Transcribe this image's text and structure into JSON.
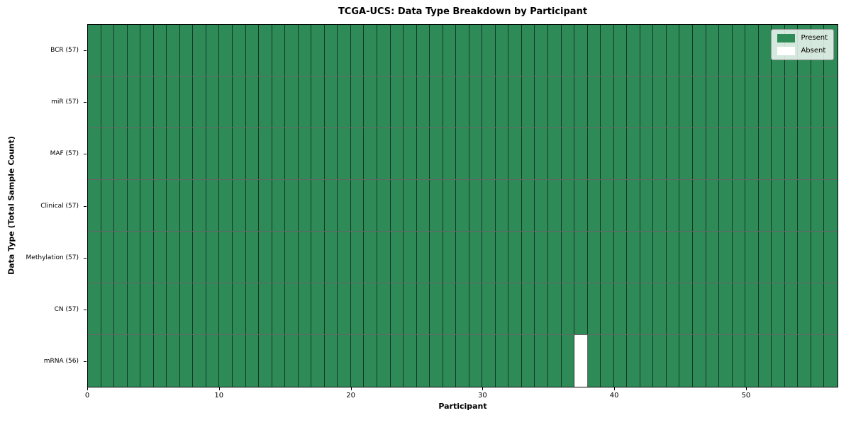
{
  "chart_data": {
    "type": "heatmap",
    "title": "TCGA-UCS: Data Type Breakdown by Participant",
    "xlabel": "Participant",
    "ylabel": "Data Type (Total Sample Count)",
    "n_participants": 57,
    "x_ticks": [
      0,
      10,
      20,
      30,
      40,
      50
    ],
    "x_range": [
      0,
      57
    ],
    "grid": "cell-borders",
    "legend_position": "upper right",
    "rows": [
      {
        "label": "BCR (57)",
        "data_type": "BCR",
        "present_count": 57,
        "absent_participants": []
      },
      {
        "label": "miR (57)",
        "data_type": "miR",
        "present_count": 57,
        "absent_participants": []
      },
      {
        "label": "MAF (57)",
        "data_type": "MAF",
        "present_count": 57,
        "absent_participants": []
      },
      {
        "label": "Clinical (57)",
        "data_type": "Clinical",
        "present_count": 57,
        "absent_participants": []
      },
      {
        "label": "Methylation (57)",
        "data_type": "Methylation",
        "present_count": 57,
        "absent_participants": []
      },
      {
        "label": "CN (57)",
        "data_type": "CN",
        "present_count": 57,
        "absent_participants": []
      },
      {
        "label": "mRNA (56)",
        "data_type": "mRNA",
        "present_count": 56,
        "absent_participants": [
          37
        ]
      }
    ],
    "legend": [
      {
        "label": "Present",
        "state": "present"
      },
      {
        "label": "Absent",
        "state": "absent"
      }
    ],
    "colors": {
      "present": "#2e8b57",
      "absent": "#ffffff",
      "cell_border": "rgba(0,0,0,0.6)",
      "axis": "#000000"
    }
  }
}
